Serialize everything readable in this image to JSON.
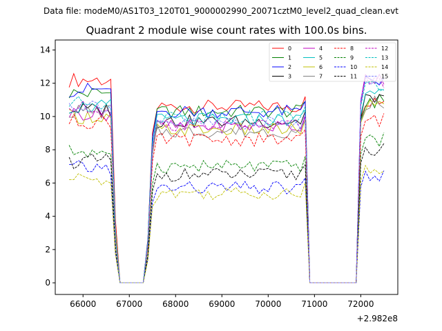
{
  "chart_data": {
    "type": "line",
    "suptitle": "Data file: modeM0/AS1T03_120T01_9000002990_20071cztM0_level2_quad_clean.evt",
    "title": "Quadrant 2 module wise count rates with 100.0s bins.",
    "xlabel": "",
    "ylabel": "",
    "x_offset_label": "+2.982e8",
    "xlim": [
      65400,
      72800
    ],
    "ylim": [
      -0.7,
      14.6
    ],
    "xticks": [
      66000,
      67000,
      68000,
      69000,
      70000,
      71000,
      72000
    ],
    "yticks": [
      0,
      2,
      4,
      6,
      8,
      10,
      12,
      14
    ],
    "legend_position": "top-right",
    "x": [
      65700,
      65800,
      65900,
      66000,
      66100,
      66200,
      66300,
      66400,
      66500,
      66600,
      66700,
      66800,
      66900,
      67000,
      67100,
      67200,
      67300,
      67400,
      67500,
      67600,
      67700,
      67800,
      67900,
      68000,
      68100,
      68200,
      68300,
      68400,
      68500,
      68600,
      68700,
      68800,
      68900,
      69000,
      69100,
      69200,
      69300,
      69400,
      69500,
      69600,
      69700,
      69800,
      69900,
      70000,
      70100,
      70200,
      70300,
      70400,
      70500,
      70600,
      70700,
      70800,
      70900,
      71000,
      71100,
      71200,
      71300,
      71400,
      71500,
      71600,
      71700,
      71800,
      71900,
      72000,
      72100,
      72200,
      72300,
      72400,
      72500
    ],
    "series": [
      {
        "name": "0",
        "color": "#ff0000",
        "dash": "solid",
        "on": 12.2,
        "base": 10.6,
        "tail": 11.0
      },
      {
        "name": "1",
        "color": "#008000",
        "dash": "solid",
        "on": 11.4,
        "base": 10.3,
        "tail": 10.9
      },
      {
        "name": "2",
        "color": "#0000ff",
        "dash": "solid",
        "on": 11.6,
        "base": 10.3,
        "tail": 12.1
      },
      {
        "name": "3",
        "color": "#000000",
        "dash": "solid",
        "on": 10.4,
        "base": 9.7,
        "tail": 11.0
      },
      {
        "name": "4",
        "color": "#bf00bf",
        "dash": "solid",
        "on": 10.2,
        "base": 9.4,
        "tail": 12.2
      },
      {
        "name": "5",
        "color": "#00bfbf",
        "dash": "solid",
        "on": 10.6,
        "base": 9.8,
        "tail": 11.2
      },
      {
        "name": "6",
        "color": "#bfbf00",
        "dash": "solid",
        "on": 10.0,
        "base": 9.2,
        "tail": 10.7
      },
      {
        "name": "7",
        "color": "#808080",
        "dash": "solid",
        "on": 10.3,
        "base": 9.1,
        "tail": 10.8
      },
      {
        "name": "8",
        "color": "#ff0000",
        "dash": "dashed",
        "on": 9.7,
        "base": 8.6,
        "tail": 9.8
      },
      {
        "name": "9",
        "color": "#008000",
        "dash": "dashed",
        "on": 7.9,
        "base": 7.0,
        "tail": 8.6
      },
      {
        "name": "10",
        "color": "#0000ff",
        "dash": "dashed",
        "on": 6.9,
        "base": 5.7,
        "tail": 6.4
      },
      {
        "name": "11",
        "color": "#000000",
        "dash": "dashed",
        "on": 7.3,
        "base": 6.5,
        "tail": 8.0
      },
      {
        "name": "12",
        "color": "#bf00bf",
        "dash": "dashed",
        "on": 10.5,
        "base": 9.5,
        "tail": 11.9
      },
      {
        "name": "13",
        "color": "#00bfbf",
        "dash": "dashed",
        "on": 10.8,
        "base": 10.0,
        "tail": 11.8
      },
      {
        "name": "14",
        "color": "#bfbf00",
        "dash": "dashed",
        "on": 6.2,
        "base": 5.4,
        "tail": 6.8
      },
      {
        "name": "15",
        "color": "#8080ff",
        "dash": "dashed",
        "on": 10.7,
        "base": 9.6,
        "tail": 12.3
      }
    ],
    "zero_segments": [
      [
        66800,
        67300
      ],
      [
        70900,
        71900
      ]
    ],
    "line_width": 0.9
  }
}
